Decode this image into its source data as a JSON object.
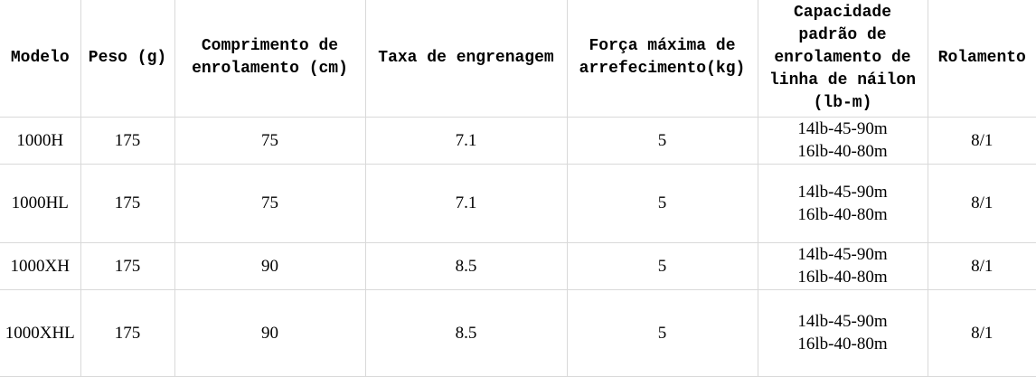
{
  "headers": [
    "Modelo",
    "Peso (g)",
    "Comprimento de enrolamento (cm)",
    "Taxa de engrenagem",
    "Força máxima de arrefecimento(kg)",
    "Capacidade padrão de enrolamento de linha de náilon (lb-m)",
    "Rolamento"
  ],
  "rows": [
    {
      "model": "1000H",
      "weight": "175",
      "length": "75",
      "ratio": "7.1",
      "drag": "5",
      "capacity": [
        "14lb-45-90m",
        "16lb-40-80m"
      ],
      "bearing": "8/1"
    },
    {
      "model": "1000HL",
      "weight": "175",
      "length": "75",
      "ratio": "7.1",
      "drag": "5",
      "capacity": [
        "14lb-45-90m",
        "16lb-40-80m"
      ],
      "bearing": "8/1"
    },
    {
      "model": "1000XH",
      "weight": "175",
      "length": "90",
      "ratio": "8.5",
      "drag": "5",
      "capacity": [
        "14lb-45-90m",
        "16lb-40-80m"
      ],
      "bearing": "8/1"
    },
    {
      "model": "1000XHL",
      "weight": "175",
      "length": "90",
      "ratio": "8.5",
      "drag": "5",
      "capacity": [
        "14lb-45-90m",
        "16lb-40-80m"
      ],
      "bearing": "8/1"
    }
  ]
}
